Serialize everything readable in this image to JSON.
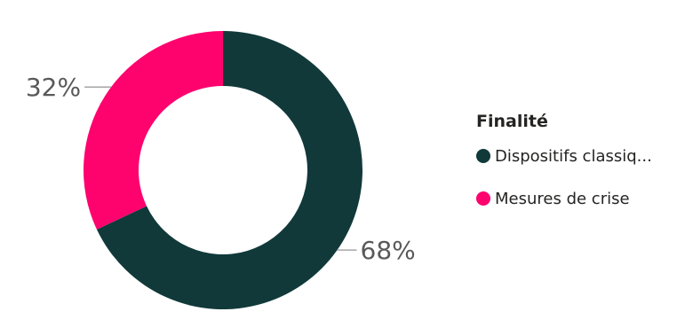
{
  "chart_data": {
    "type": "pie",
    "variant": "donut",
    "legend": {
      "title": "Finalité",
      "position": "right"
    },
    "slices": [
      {
        "name": "Dispositifs classiq...",
        "value": 68,
        "label": "68%",
        "color": "#11393a"
      },
      {
        "name": "Mesures de crise",
        "value": 32,
        "label": "32%",
        "color": "#fe026e"
      }
    ]
  }
}
